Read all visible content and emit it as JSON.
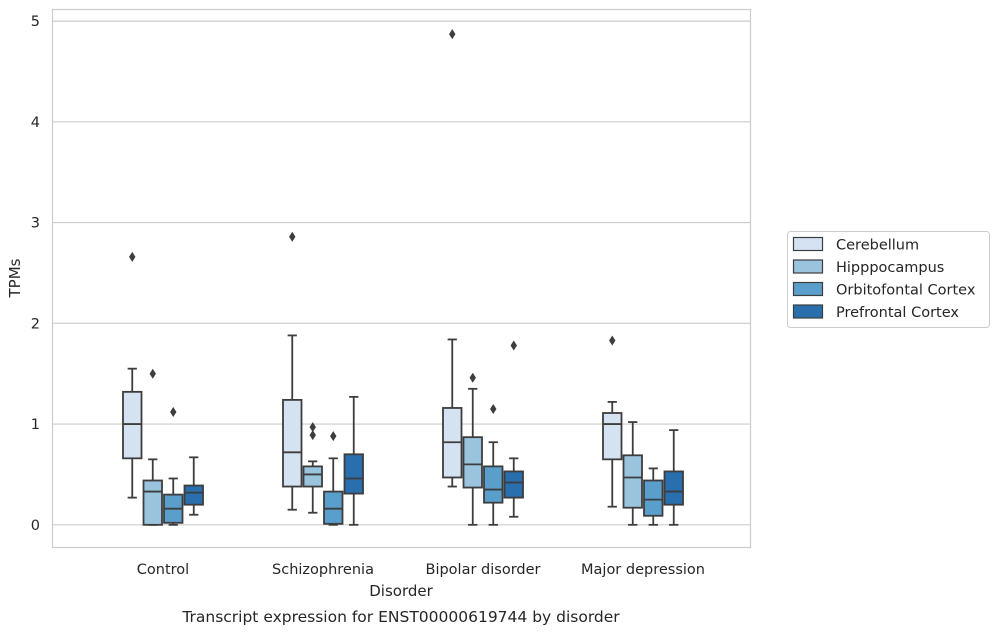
{
  "chart_data": {
    "type": "box",
    "caption": "Transcript expression for ENST00000619744 by disorder",
    "xlabel": "Disorder",
    "ylabel": "TPMs",
    "ylim": [
      -0.23,
      5.12
    ],
    "yticks": [
      0,
      1,
      2,
      3,
      4,
      5
    ],
    "grid": true,
    "legend_position": "right",
    "categories": [
      "Control",
      "Schizophrenia",
      "Bipolar disorder",
      "Major depression"
    ],
    "series": [
      {
        "name": "Cerebellum",
        "color": "#d4e2f2",
        "boxes": [
          {
            "whislo": 0.27,
            "q1": 0.66,
            "med": 1.0,
            "q3": 1.32,
            "whishi": 1.55,
            "fliers": [
              2.66
            ]
          },
          {
            "whislo": 0.15,
            "q1": 0.38,
            "med": 0.72,
            "q3": 1.24,
            "whishi": 1.88,
            "fliers": [
              2.86
            ]
          },
          {
            "whislo": 0.38,
            "q1": 0.47,
            "med": 0.82,
            "q3": 1.16,
            "whishi": 1.84,
            "fliers": [
              4.87
            ]
          },
          {
            "whislo": 0.18,
            "q1": 0.65,
            "med": 1.0,
            "q3": 1.11,
            "whishi": 1.22,
            "fliers": [
              1.83
            ]
          }
        ]
      },
      {
        "name": "Hipppocampus",
        "color": "#9ac4de",
        "boxes": [
          {
            "whislo": 0.0,
            "q1": 0.0,
            "med": 0.33,
            "q3": 0.44,
            "whishi": 0.65,
            "fliers": [
              1.5
            ]
          },
          {
            "whislo": 0.12,
            "q1": 0.38,
            "med": 0.5,
            "q3": 0.58,
            "whishi": 0.63,
            "fliers": [
              0.97,
              0.89
            ]
          },
          {
            "whislo": 0.0,
            "q1": 0.37,
            "med": 0.6,
            "q3": 0.87,
            "whishi": 1.35,
            "fliers": [
              1.46
            ]
          },
          {
            "whislo": 0.0,
            "q1": 0.17,
            "med": 0.47,
            "q3": 0.69,
            "whishi": 1.02,
            "fliers": []
          }
        ]
      },
      {
        "name": "Orbitofontal Cortex",
        "color": "#5a9ecc",
        "boxes": [
          {
            "whislo": 0.0,
            "q1": 0.02,
            "med": 0.16,
            "q3": 0.3,
            "whishi": 0.46,
            "fliers": [
              1.12
            ]
          },
          {
            "whislo": 0.0,
            "q1": 0.01,
            "med": 0.16,
            "q3": 0.33,
            "whishi": 0.66,
            "fliers": [
              0.88
            ]
          },
          {
            "whislo": 0.0,
            "q1": 0.22,
            "med": 0.35,
            "q3": 0.58,
            "whishi": 0.82,
            "fliers": [
              1.15
            ]
          },
          {
            "whislo": 0.0,
            "q1": 0.09,
            "med": 0.25,
            "q3": 0.44,
            "whishi": 0.56,
            "fliers": []
          }
        ]
      },
      {
        "name": "Prefrontal Cortex",
        "color": "#2a6fad",
        "boxes": [
          {
            "whislo": 0.1,
            "q1": 0.2,
            "med": 0.32,
            "q3": 0.39,
            "whishi": 0.67,
            "fliers": []
          },
          {
            "whislo": 0.0,
            "q1": 0.31,
            "med": 0.46,
            "q3": 0.7,
            "whishi": 1.27,
            "fliers": []
          },
          {
            "whislo": 0.08,
            "q1": 0.27,
            "med": 0.42,
            "q3": 0.53,
            "whishi": 0.66,
            "fliers": [
              1.78
            ]
          },
          {
            "whislo": 0.0,
            "q1": 0.2,
            "med": 0.33,
            "q3": 0.53,
            "whishi": 0.94,
            "fliers": []
          }
        ]
      }
    ]
  }
}
